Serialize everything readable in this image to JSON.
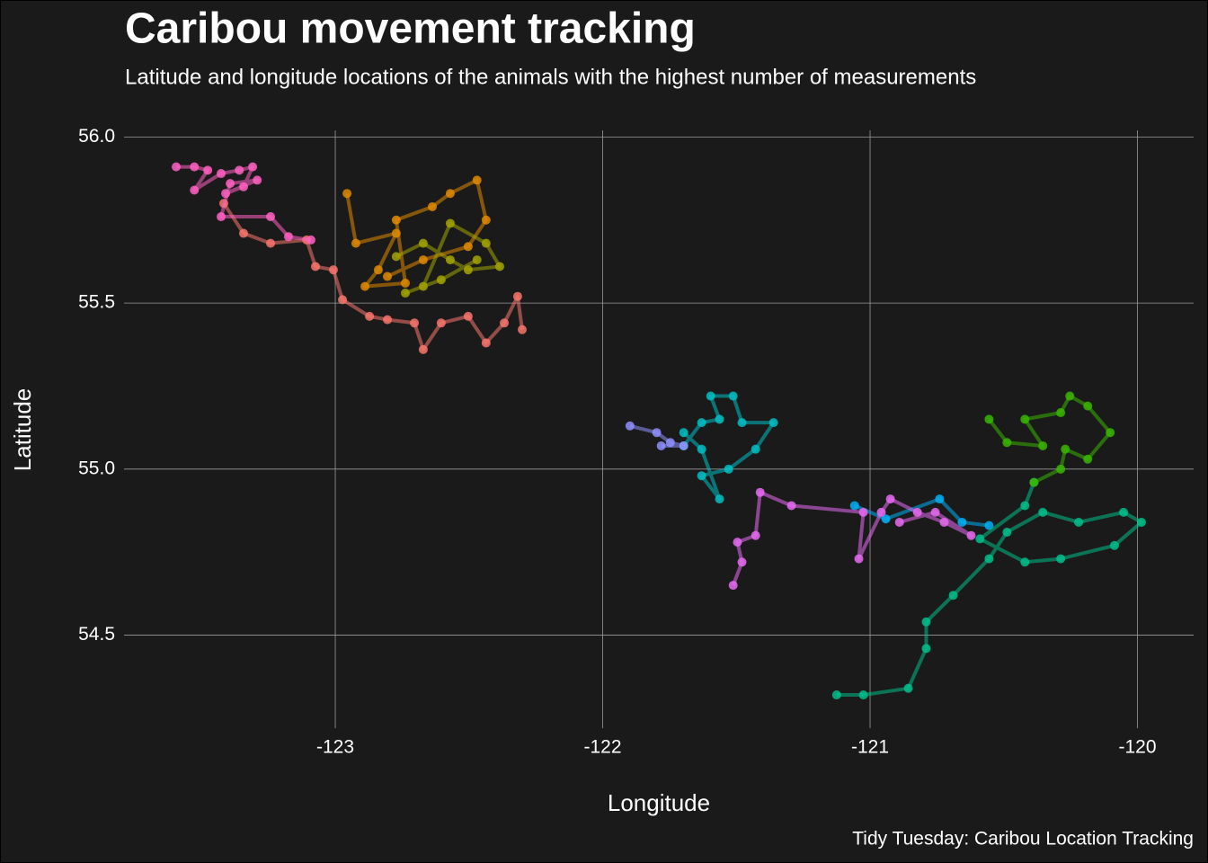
{
  "chart_data": {
    "type": "line",
    "markers": true,
    "grid": true,
    "title": "Caribou movement tracking",
    "subtitle": "Latitude and longitude locations of the animals with the highest number of measurements",
    "x_label": "Longitude",
    "y_label": "Latitude",
    "caption": "Tidy Tuesday: Caribou Location Tracking",
    "xlim": [
      -123.79,
      -119.79
    ],
    "xticks": [
      -123,
      -122,
      -121,
      -120
    ],
    "ylim": [
      54.22,
      56.02
    ],
    "yticks": [
      54.5,
      {
        "value": 55,
        "label": "55.0"
      },
      55.5,
      {
        "value": 56,
        "label": "56.0"
      }
    ],
    "series": [
      {
        "color": "#F8766D",
        "x": [
          -123.417,
          -123.343,
          -123.242,
          -123.107,
          -123.074,
          -123.007,
          -122.973,
          -122.872,
          -122.805,
          -122.704,
          -122.671,
          -122.604,
          -122.503,
          -122.436,
          -122.368,
          -122.318,
          -122.301
        ],
        "values": [
          55.8,
          55.71,
          55.68,
          55.69,
          55.61,
          55.6,
          55.51,
          55.46,
          55.45,
          55.44,
          55.36,
          55.44,
          55.46,
          55.38,
          55.44,
          55.52,
          55.42
        ]
      },
      {
        "color": "#FF61C3",
        "x": [
          -123.595,
          -123.527,
          -123.477,
          -123.527,
          -123.427,
          -123.359,
          -123.309,
          -123.343,
          -123.41,
          -123.292,
          -123.393,
          -123.427,
          -123.242,
          -123.175,
          -123.091
        ],
        "values": [
          55.91,
          55.91,
          55.9,
          55.84,
          55.89,
          55.9,
          55.91,
          55.85,
          55.83,
          55.87,
          55.86,
          55.76,
          55.76,
          55.7,
          55.69
        ]
      },
      {
        "color": "#E08B00",
        "x": [
          -122.956,
          -122.923,
          -122.772,
          -122.839,
          -122.889,
          -122.738,
          -122.772,
          -122.637,
          -122.57,
          -122.47,
          -122.436,
          -122.503,
          -122.671,
          -122.805
        ],
        "values": [
          55.83,
          55.68,
          55.71,
          55.6,
          55.55,
          55.56,
          55.75,
          55.79,
          55.83,
          55.87,
          55.75,
          55.67,
          55.63,
          55.58
        ]
      },
      {
        "color": "#A3A500",
        "x": [
          -122.772,
          -122.671,
          -122.57,
          -122.503,
          -122.385,
          -122.436,
          -122.57,
          -122.671,
          -122.738,
          -122.604,
          -122.47
        ],
        "values": [
          55.64,
          55.68,
          55.63,
          55.6,
          55.61,
          55.68,
          55.74,
          55.55,
          55.53,
          55.57,
          55.63
        ]
      },
      {
        "color": "#00BFC4",
        "x": [
          -121.697,
          -121.63,
          -121.563,
          -121.596,
          -121.512,
          -121.479,
          -121.361,
          -121.428,
          -121.529,
          -121.63,
          -121.563,
          -121.63,
          -121.697
        ],
        "values": [
          55.07,
          55.14,
          55.15,
          55.22,
          55.22,
          55.14,
          55.14,
          55.06,
          55.0,
          54.98,
          54.91,
          55.06,
          55.11
        ]
      },
      {
        "color": "#8F91FF",
        "x": [
          -121.898,
          -121.798,
          -121.747,
          -121.697,
          -121.781
        ],
        "values": [
          55.13,
          55.11,
          55.08,
          55.07,
          55.07
        ]
      },
      {
        "color": "#00B0F6",
        "x": [
          -121.058,
          -120.941,
          -120.74,
          -120.656,
          -120.555
        ],
        "values": [
          54.89,
          54.85,
          54.91,
          54.84,
          54.83
        ]
      },
      {
        "color": "#E76BF3",
        "x": [
          -121.512,
          -121.479,
          -121.496,
          -121.428,
          -121.411,
          -121.294,
          -121.025,
          -121.042,
          -120.958,
          -120.924,
          -120.823,
          -120.723,
          -120.622,
          -120.756,
          -120.89
        ],
        "values": [
          54.65,
          54.72,
          54.78,
          54.8,
          54.93,
          54.89,
          54.87,
          54.73,
          54.87,
          54.91,
          54.87,
          54.84,
          54.8,
          54.87,
          54.84
        ]
      },
      {
        "color": "#00C08B",
        "x": [
          -121.125,
          -121.025,
          -120.857,
          -120.79,
          -120.79,
          -120.689,
          -120.555,
          -120.488,
          -120.354,
          -120.22,
          -120.052,
          -119.985,
          -120.086,
          -120.287,
          -120.421,
          -120.589,
          -120.421,
          -120.387
        ],
        "values": [
          54.32,
          54.32,
          54.34,
          54.46,
          54.54,
          54.62,
          54.73,
          54.81,
          54.87,
          54.84,
          54.87,
          54.84,
          54.77,
          54.73,
          54.72,
          54.79,
          54.89,
          54.96
        ]
      },
      {
        "color": "#39B600",
        "x": [
          -120.555,
          -120.488,
          -120.354,
          -120.421,
          -120.287,
          -120.253,
          -120.186,
          -120.102,
          -120.186,
          -120.27,
          -120.287,
          -120.387
        ],
        "values": [
          55.15,
          55.08,
          55.07,
          55.15,
          55.17,
          55.22,
          55.19,
          55.11,
          55.03,
          55.06,
          55.0,
          54.96
        ]
      }
    ]
  }
}
